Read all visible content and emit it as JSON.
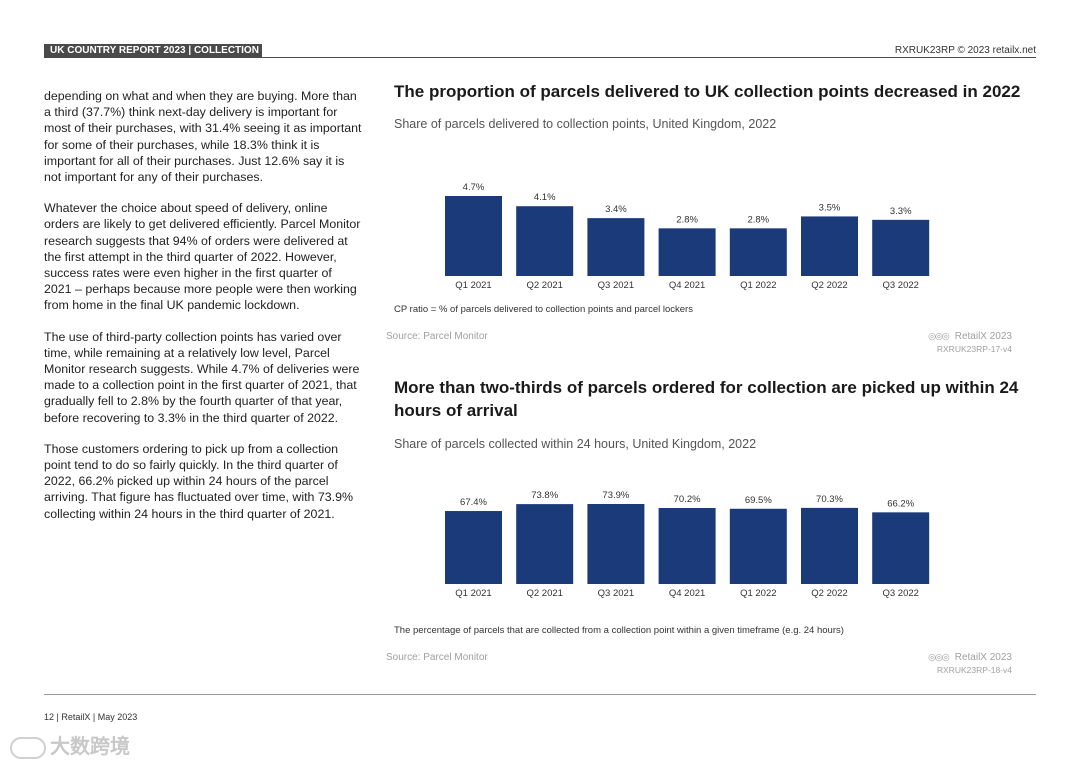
{
  "header": {
    "tag": "UK COUNTRY REPORT 2023 | COLLECTION",
    "right": "RXRUK23RP © 2023 retailx.net"
  },
  "body": {
    "paragraphs": [
      "depending on what and when they are buying. More than a third (37.7%) think next-day delivery is important for most of their purchases, with 31.4% seeing it as important for some of their purchases, while 18.3% think it is important for all of their purchases. Just 12.6% say it is not important for any of their purchases.",
      "Whatever the choice about speed of delivery, online orders are likely to get delivered efficiently. Parcel Monitor research suggests that 94% of orders were delivered at the first attempt in the third quarter of 2022. However, success rates were even higher in the first quarter of 2021 – perhaps because more people were then working from home in the final UK pandemic lockdown.",
      "The use of third-party collection points has varied over time, while remaining at a relatively low level, Parcel Monitor research suggests. While 4.7% of deliveries were made to a collection point in the first quarter of 2021, that gradually fell to 2.8% by the fourth quarter of that year, before recovering to 3.3% in the third quarter of 2022.",
      "Those customers ordering to pick up from a collection point tend to do so fairly quickly. In the third quarter of 2022, 66.2% picked up within 24 hours of the parcel arriving. That figure has fluctuated over time, with 73.9% collecting within 24 hours in the third quarter of 2021."
    ]
  },
  "chart1_meta": {
    "note": "CP ratio = % of parcels delivered to collection points and parcel lockers",
    "source": "Source: Parcel Monitor",
    "brand": "RetailX 2023",
    "code": "RXRUK23RP-17-v4",
    "logo": "◎◎◎"
  },
  "chart2_meta": {
    "note": "The percentage of parcels that are collected from a collection point within a given timeframe (e.g. 24 hours)",
    "source": "Source: Parcel Monitor",
    "brand": "RetailX 2023",
    "code": "RXRUK23RP-18-v4",
    "logo": "◎◎◎"
  },
  "chart_data": [
    {
      "type": "bar",
      "title": "The proportion of parcels delivered to UK collection points decreased in 2022",
      "subtitle": "Share of parcels delivered to collection points, United Kingdom, 2022",
      "categories": [
        "Q1 2021",
        "Q2 2021",
        "Q3 2021",
        "Q4 2021",
        "Q1 2022",
        "Q2 2022",
        "Q3 2022"
      ],
      "values": [
        4.7,
        4.1,
        3.4,
        2.8,
        2.8,
        3.5,
        3.3
      ],
      "value_labels": [
        "4.7%",
        "4.1%",
        "3.4%",
        "2.8%",
        "2.8%",
        "3.5%",
        "3.3%"
      ],
      "ylim": [
        0,
        4.7
      ],
      "color": "#1b3a7a"
    },
    {
      "type": "bar",
      "title": "More than two-thirds of parcels ordered for collection are picked up within 24 hours of arrival",
      "subtitle": "Share of parcels collected within 24 hours, United Kingdom, 2022",
      "categories": [
        "Q1 2021",
        "Q2 2021",
        "Q3 2021",
        "Q4 2021",
        "Q1 2022",
        "Q2 2022",
        "Q3 2022"
      ],
      "values": [
        67.4,
        73.8,
        73.9,
        70.2,
        69.5,
        70.3,
        66.2
      ],
      "value_labels": [
        "67.4%",
        "73.8%",
        "73.9%",
        "70.2%",
        "69.5%",
        "70.3%",
        "66.2%"
      ],
      "ylim": [
        0,
        73.9
      ],
      "color": "#1b3a7a"
    }
  ],
  "footer": {
    "text": "12 | RetailX | May 2023",
    "watermark": "大数跨境"
  }
}
